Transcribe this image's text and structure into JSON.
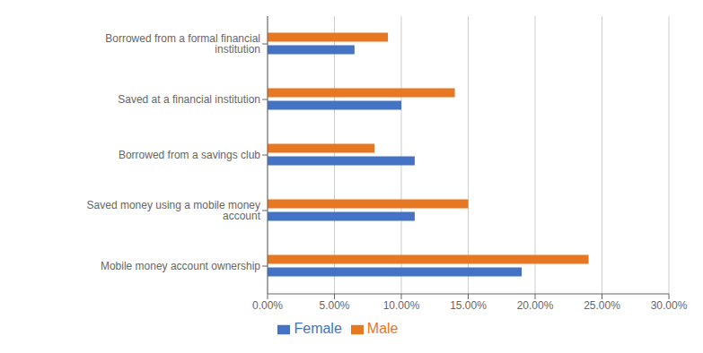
{
  "chart_data": {
    "type": "bar",
    "orientation": "horizontal",
    "categories": [
      "Mobile money account ownership",
      "Saved money using a mobile money account",
      "Borrowed from a savings club",
      "Saved at a financial institution",
      "Borrowed from a formal financial institution"
    ],
    "series": [
      {
        "name": "Male",
        "color": "#E87722",
        "values": [
          0.24,
          0.15,
          0.08,
          0.14,
          0.09
        ]
      },
      {
        "name": "Female",
        "color": "#4472C4",
        "values": [
          0.19,
          0.11,
          0.11,
          0.1,
          0.065
        ]
      }
    ],
    "xlim": [
      0.0,
      0.3
    ],
    "xticks": [
      {
        "value": 0.0,
        "label": "0.00%"
      },
      {
        "value": 0.05,
        "label": "5.00%"
      },
      {
        "value": 0.1,
        "label": "10.00%"
      },
      {
        "value": 0.15,
        "label": "15.00%"
      },
      {
        "value": 0.2,
        "label": "20.00%"
      },
      {
        "value": 0.25,
        "label": "25.00%"
      },
      {
        "value": 0.3,
        "label": "30.00%"
      }
    ],
    "grid": true,
    "legend": "bottom"
  }
}
